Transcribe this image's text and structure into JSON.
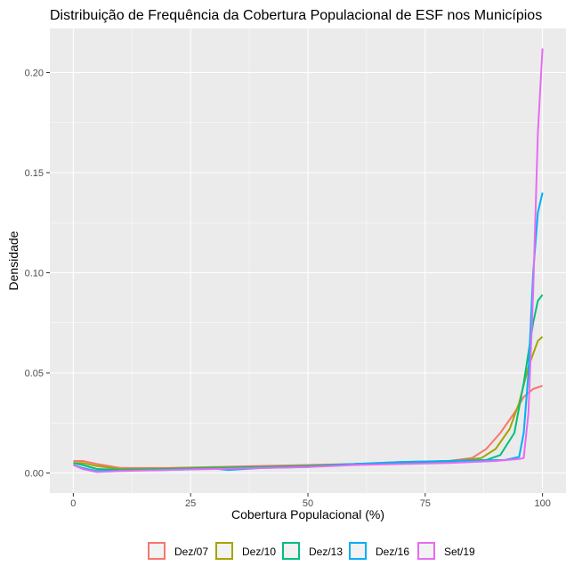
{
  "chart_data": {
    "type": "line",
    "title": "Distribuição de Frequência da Cobertura Populacional de ESF nos Municípios",
    "xlabel": "Cobertura Populacional (%)",
    "ylabel": "Densidade",
    "xlim": [
      -5,
      105
    ],
    "ylim": [
      -0.01,
      0.222
    ],
    "xticks": [
      0,
      25,
      50,
      75,
      100
    ],
    "xtick_labels": [
      "0",
      "25",
      "50",
      "75",
      "100"
    ],
    "yticks": [
      0,
      0.05,
      0.1,
      0.15,
      0.2
    ],
    "ytick_labels": [
      "0.00",
      "0.05",
      "0.10",
      "0.15",
      "0.20"
    ],
    "grid": true,
    "legend_position": "bottom",
    "series": [
      {
        "name": "Dez/07",
        "color": "#F8766D",
        "points": [
          [
            0,
            0.006
          ],
          [
            2,
            0.006
          ],
          [
            5,
            0.0045
          ],
          [
            10,
            0.0025
          ],
          [
            20,
            0.0025
          ],
          [
            30,
            0.003
          ],
          [
            40,
            0.0035
          ],
          [
            50,
            0.004
          ],
          [
            60,
            0.0045
          ],
          [
            70,
            0.0055
          ],
          [
            80,
            0.006
          ],
          [
            85,
            0.0075
          ],
          [
            88,
            0.012
          ],
          [
            91,
            0.02
          ],
          [
            94,
            0.03
          ],
          [
            96,
            0.038
          ],
          [
            98,
            0.042
          ],
          [
            100,
            0.0435
          ]
        ]
      },
      {
        "name": "Dez/10",
        "color": "#A3A500",
        "points": [
          [
            0,
            0.005
          ],
          [
            2,
            0.005
          ],
          [
            5,
            0.0035
          ],
          [
            10,
            0.002
          ],
          [
            20,
            0.0022
          ],
          [
            30,
            0.0028
          ],
          [
            40,
            0.003
          ],
          [
            50,
            0.0035
          ],
          [
            60,
            0.0045
          ],
          [
            70,
            0.005
          ],
          [
            80,
            0.0055
          ],
          [
            87,
            0.0075
          ],
          [
            90,
            0.012
          ],
          [
            93,
            0.022
          ],
          [
            95,
            0.035
          ],
          [
            97,
            0.053
          ],
          [
            99,
            0.066
          ],
          [
            100,
            0.068
          ]
        ]
      },
      {
        "name": "Dez/13",
        "color": "#00BF7D",
        "points": [
          [
            0,
            0.005
          ],
          [
            2,
            0.004
          ],
          [
            5,
            0.002
          ],
          [
            10,
            0.0015
          ],
          [
            20,
            0.002
          ],
          [
            30,
            0.0025
          ],
          [
            40,
            0.003
          ],
          [
            50,
            0.0035
          ],
          [
            60,
            0.0045
          ],
          [
            70,
            0.005
          ],
          [
            80,
            0.006
          ],
          [
            88,
            0.0065
          ],
          [
            91,
            0.009
          ],
          [
            94,
            0.02
          ],
          [
            96,
            0.045
          ],
          [
            98,
            0.075
          ],
          [
            99,
            0.086
          ],
          [
            100,
            0.089
          ]
        ]
      },
      {
        "name": "Dez/16",
        "color": "#00B0F6",
        "points": [
          [
            0,
            0.004
          ],
          [
            2,
            0.0025
          ],
          [
            5,
            0.001
          ],
          [
            10,
            0.0012
          ],
          [
            20,
            0.0015
          ],
          [
            30,
            0.0022
          ],
          [
            33,
            0.0015
          ],
          [
            40,
            0.0025
          ],
          [
            50,
            0.003
          ],
          [
            60,
            0.0045
          ],
          [
            70,
            0.0055
          ],
          [
            80,
            0.006
          ],
          [
            92,
            0.0065
          ],
          [
            95,
            0.008
          ],
          [
            96,
            0.02
          ],
          [
            97,
            0.05
          ],
          [
            98,
            0.1
          ],
          [
            99,
            0.13
          ],
          [
            100,
            0.14
          ]
        ]
      },
      {
        "name": "Set/19",
        "color": "#E76BF3",
        "points": [
          [
            0,
            0.004
          ],
          [
            2,
            0.002
          ],
          [
            5,
            0.0005
          ],
          [
            10,
            0.001
          ],
          [
            20,
            0.0015
          ],
          [
            30,
            0.002
          ],
          [
            40,
            0.0025
          ],
          [
            50,
            0.003
          ],
          [
            60,
            0.004
          ],
          [
            70,
            0.0045
          ],
          [
            80,
            0.005
          ],
          [
            90,
            0.006
          ],
          [
            95,
            0.007
          ],
          [
            96,
            0.0075
          ],
          [
            97,
            0.03
          ],
          [
            98,
            0.09
          ],
          [
            99,
            0.17
          ],
          [
            100,
            0.212
          ]
        ]
      }
    ]
  }
}
